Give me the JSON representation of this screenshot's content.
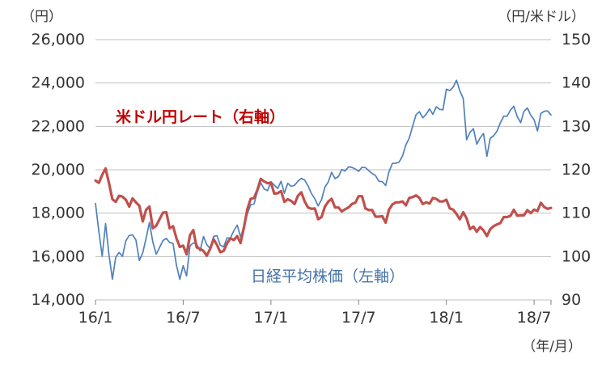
{
  "chart_data": {
    "type": "line",
    "unit_left": "（円）",
    "unit_right": "（円/米ドル）",
    "xlabel": "（年/月）",
    "x_tick_labels": [
      "16/1",
      "16/7",
      "17/1",
      "17/7",
      "18/1",
      "18/7"
    ],
    "x_tick_indices": [
      0,
      26,
      52,
      78,
      104,
      130
    ],
    "left_axis": {
      "min": 14000,
      "max": 26000,
      "step": 2000,
      "tick_labels": [
        "26,000",
        "24,000",
        "22,000",
        "20,000",
        "18,000",
        "16,000",
        "14,000"
      ]
    },
    "right_axis": {
      "min": 90,
      "max": 150,
      "step": 10,
      "tick_labels": [
        "150",
        "140",
        "130",
        "120",
        "110",
        "100",
        "90"
      ]
    },
    "grid_color": "#bfbfbf",
    "tick_color": "#808080",
    "label_color": "#333333",
    "annotations": [
      {
        "text": "米ドル円レート（右軸）",
        "color": "#c00000",
        "bold": true
      },
      {
        "text": "日経平均株価（左軸）",
        "color": "#4472a8",
        "bold": false
      }
    ],
    "series": [
      {
        "key": "nikkei",
        "name": "日経平均株価（左軸）",
        "axis": "left",
        "color": "#4f81bd",
        "width": 1.7,
        "values": [
          18450,
          17150,
          16017,
          17518,
          16085,
          14953,
          15967,
          16188,
          16014,
          16724,
          16972,
          17002,
          16759,
          15822,
          16164,
          16848,
          17572,
          16666,
          16107,
          16412,
          16736,
          16835,
          16642,
          16601,
          15599,
          14952,
          15576,
          15107,
          16498,
          16627,
          16569,
          16254,
          16920,
          16546,
          16361,
          16926,
          16965,
          16520,
          16450,
          16860,
          16856,
          17185,
          17446,
          16905,
          17375,
          17967,
          18381,
          18426,
          18996,
          19401,
          19114,
          19033,
          19454,
          19287,
          19138,
          19467,
          18918,
          19379,
          19235,
          19284,
          19469,
          19605,
          19522,
          19263,
          18909,
          18665,
          18336,
          18621,
          19197,
          19446,
          19883,
          19591,
          19686,
          20013,
          19943,
          20133,
          20110,
          20033,
          19929,
          20119,
          20100,
          19960,
          19830,
          19730,
          19470,
          19452,
          19275,
          19910,
          20296,
          20300,
          20356,
          20629,
          21156,
          21458,
          22008,
          22539,
          22681,
          22397,
          22551,
          22811,
          22553,
          22903,
          22783,
          22765,
          23715,
          23653,
          23808,
          24124,
          23632,
          23275,
          21382,
          21720,
          21893,
          21181,
          21469,
          21676,
          20618,
          21454,
          21567,
          21779,
          22162,
          22468,
          22473,
          22758,
          22930,
          22451,
          22171,
          22695,
          22852,
          22517,
          22305,
          21788,
          22597,
          22698,
          22713,
          22525
        ]
      },
      {
        "key": "usdjpy",
        "name": "米ドル円レート（右軸）",
        "axis": "right",
        "color": "#c0504d",
        "width": 3.2,
        "values": [
          117.5,
          117.0,
          118.8,
          120.3,
          116.9,
          113.2,
          112.6,
          114.0,
          113.8,
          113.1,
          111.5,
          113.4,
          112.5,
          111.7,
          108.1,
          110.8,
          111.5,
          106.5,
          107.1,
          108.6,
          110.1,
          110.2,
          106.5,
          107.0,
          104.2,
          102.2,
          102.5,
          100.5,
          104.9,
          106.1,
          102.1,
          101.8,
          101.3,
          100.2,
          101.8,
          104.0,
          102.7,
          101.0,
          101.3,
          103.0,
          104.2,
          103.8,
          104.7,
          103.1,
          106.7,
          110.9,
          113.3,
          113.5,
          115.4,
          117.9,
          117.3,
          116.9,
          117.0,
          114.5,
          114.6,
          115.1,
          112.6,
          113.2,
          112.8,
          112.1,
          114.0,
          114.8,
          112.7,
          111.3,
          111.0,
          111.1,
          108.6,
          109.1,
          111.5,
          112.7,
          113.3,
          111.3,
          111.3,
          110.4,
          110.9,
          111.3,
          112.1,
          112.4,
          113.9,
          113.9,
          111.1,
          110.7,
          110.7,
          109.2,
          109.2,
          109.3,
          107.8,
          110.8,
          112.0,
          112.5,
          112.5,
          112.7,
          111.8,
          113.5,
          113.7,
          114.1,
          113.5,
          112.1,
          112.5,
          112.2,
          113.5,
          113.3,
          112.7,
          112.7,
          113.1,
          111.1,
          110.8,
          109.8,
          108.6,
          110.2,
          108.8,
          106.3,
          106.9,
          105.7,
          106.8,
          106.0,
          104.7,
          106.3,
          107.0,
          107.4,
          107.7,
          109.1,
          109.1,
          109.4,
          110.8,
          109.4,
          109.5,
          109.5,
          110.7,
          110.0,
          110.8,
          110.5,
          112.4,
          111.4,
          111.0,
          111.2
        ]
      }
    ]
  }
}
